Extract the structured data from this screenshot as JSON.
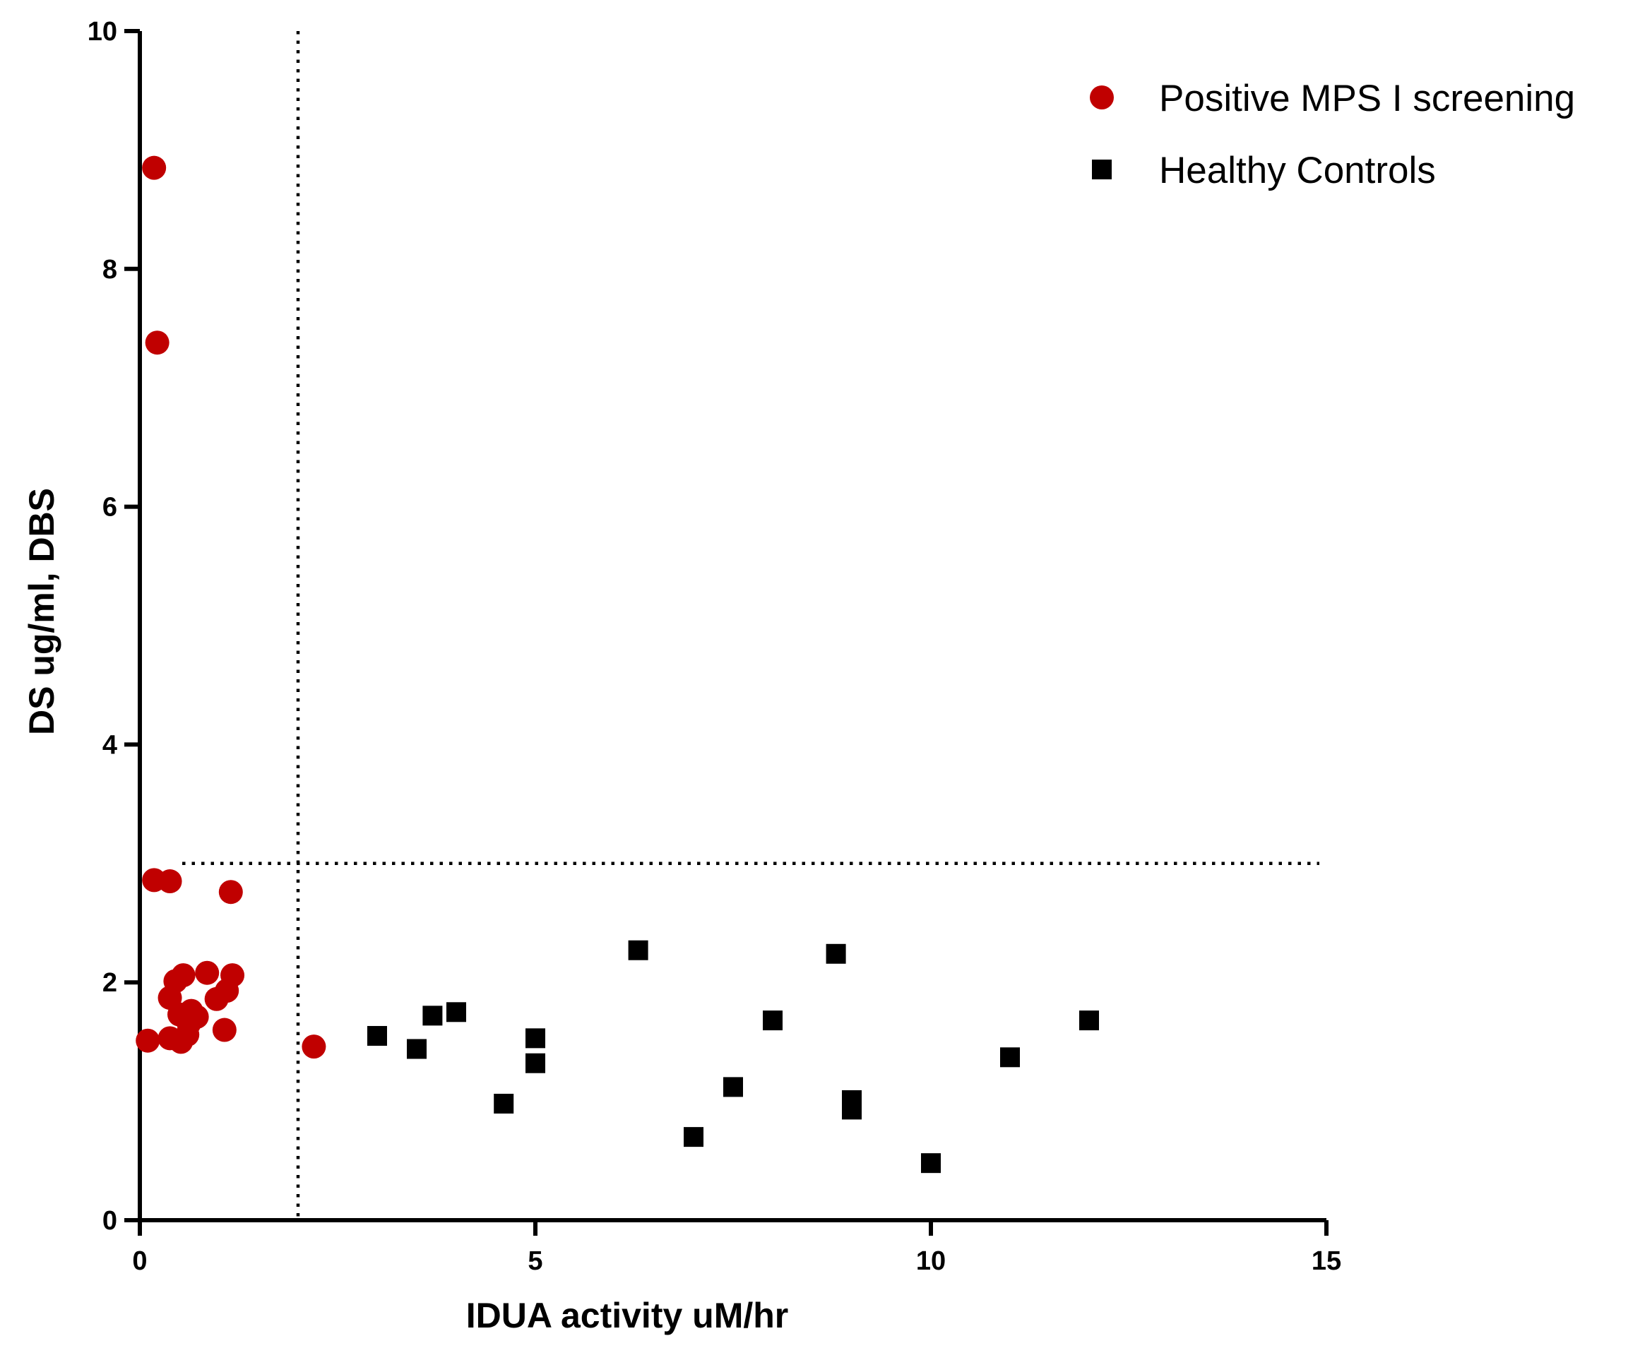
{
  "chart_data": {
    "type": "scatter",
    "title": "",
    "xlabel": "IDUA activity uM/hr",
    "ylabel": "DS ug/ml, DBS",
    "xlim": [
      0,
      15
    ],
    "ylim": [
      0,
      10
    ],
    "xticks": [
      0,
      5,
      10,
      15
    ],
    "yticks": [
      0,
      2,
      4,
      6,
      8,
      10
    ],
    "grid": false,
    "legend_position": "top-right",
    "reference_lines": [
      {
        "orientation": "vertical",
        "x": 2,
        "style": "dotted"
      },
      {
        "orientation": "horizontal",
        "y": 3,
        "style": "dotted"
      }
    ],
    "series": [
      {
        "name": "Positive MPS I screening",
        "marker": "circle",
        "color": "#c00000",
        "points": [
          [
            0.18,
            8.85
          ],
          [
            0.22,
            7.38
          ],
          [
            0.18,
            2.86
          ],
          [
            0.38,
            2.85
          ],
          [
            1.15,
            2.76
          ],
          [
            0.55,
            2.06
          ],
          [
            0.85,
            2.08
          ],
          [
            1.17,
            2.06
          ],
          [
            0.45,
            2.01
          ],
          [
            1.1,
            1.93
          ],
          [
            0.38,
            1.87
          ],
          [
            0.97,
            1.86
          ],
          [
            0.65,
            1.76
          ],
          [
            0.5,
            1.73
          ],
          [
            0.72,
            1.71
          ],
          [
            0.62,
            1.65
          ],
          [
            1.07,
            1.6
          ],
          [
            0.6,
            1.56
          ],
          [
            0.38,
            1.53
          ],
          [
            0.52,
            1.5
          ],
          [
            0.1,
            1.51
          ],
          [
            2.2,
            1.46
          ]
        ]
      },
      {
        "name": "Healthy Controls",
        "marker": "square",
        "color": "#000000",
        "points": [
          [
            3.0,
            1.55
          ],
          [
            3.5,
            1.44
          ],
          [
            3.7,
            1.72
          ],
          [
            4.0,
            1.75
          ],
          [
            4.6,
            0.98
          ],
          [
            5.0,
            1.53
          ],
          [
            5.0,
            1.32
          ],
          [
            6.3,
            2.27
          ],
          [
            7.0,
            0.7
          ],
          [
            7.5,
            1.12
          ],
          [
            8.0,
            1.68
          ],
          [
            8.8,
            2.24
          ],
          [
            9.0,
            1.01
          ],
          [
            9.0,
            0.93
          ],
          [
            10.0,
            0.48
          ],
          [
            11.0,
            1.37
          ],
          [
            12.0,
            1.68
          ]
        ]
      }
    ]
  }
}
